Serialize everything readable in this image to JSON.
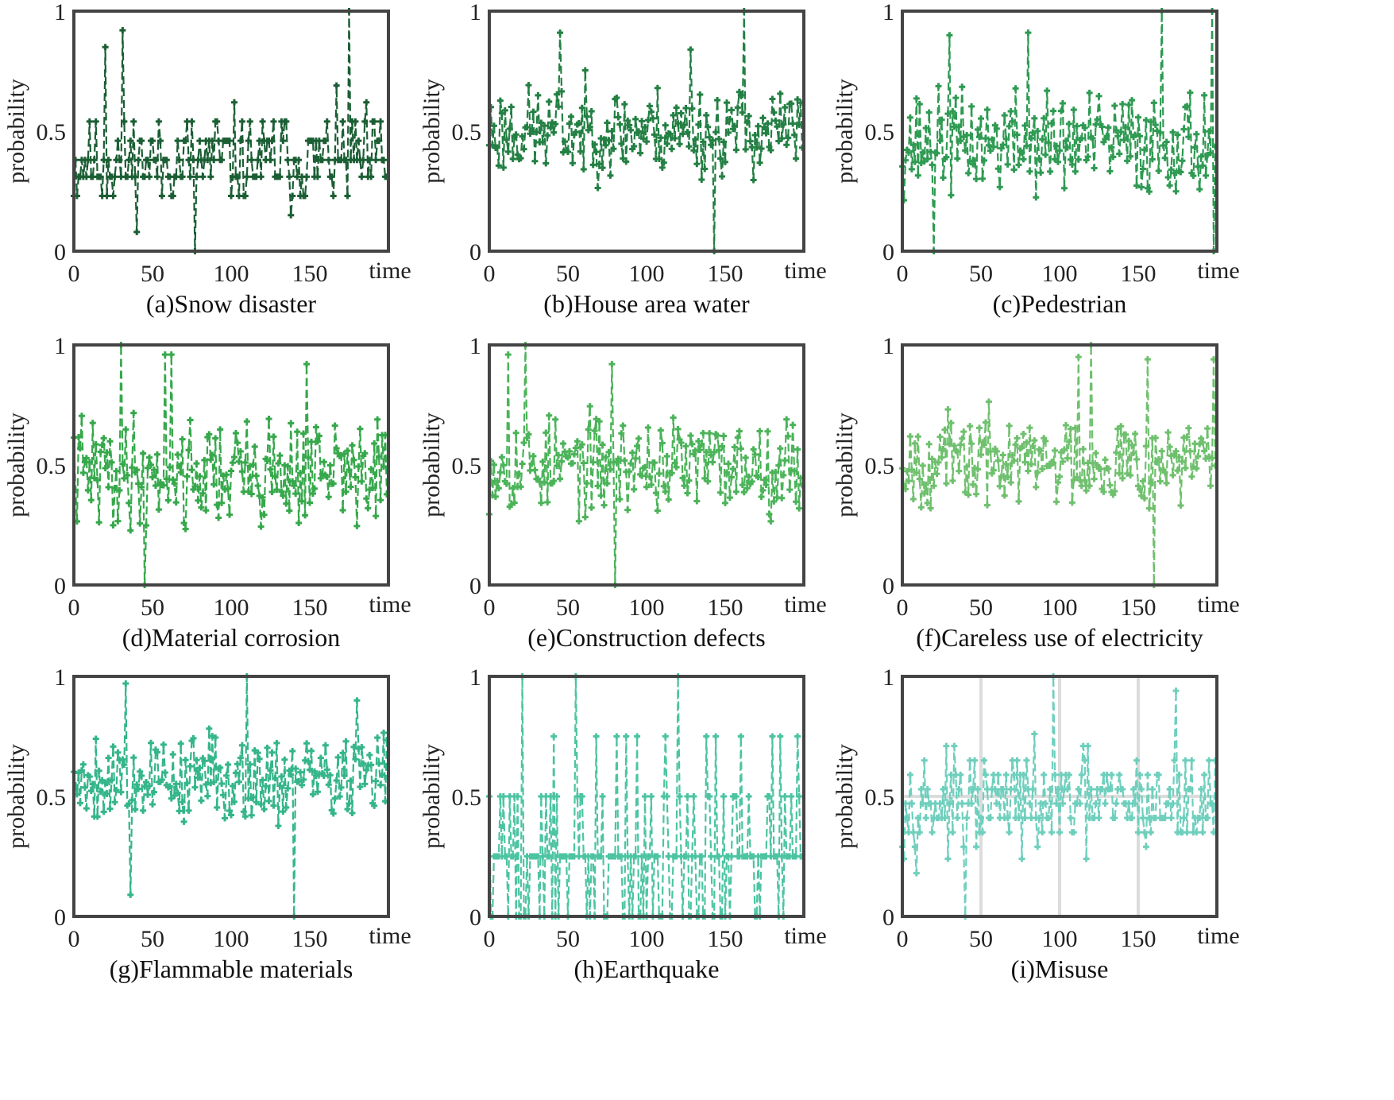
{
  "chart_data": [
    {
      "type": "line",
      "panel": "a",
      "title": "(a)Snow disaster",
      "xlabel": "time",
      "ylabel": "probability",
      "xlim": [
        0,
        200
      ],
      "ylim": [
        0,
        1
      ],
      "xticks": [
        0,
        50,
        100,
        150
      ],
      "yticks": [
        0,
        0.5,
        1
      ],
      "xtick_labels": [
        "0",
        "50",
        "100",
        "150"
      ],
      "ytick_labels": [
        "0",
        "0.5",
        "1"
      ],
      "color": "#1b5e34",
      "line_style": "dashed",
      "marker": "plus",
      "levels": [
        0.08,
        0.15,
        0.23,
        0.31,
        0.38,
        0.46,
        0.54,
        0.62,
        0.69,
        0.77
      ],
      "series": [
        {
          "name": "Snow disaster",
          "x_step": 1,
          "count": 200,
          "seed": 11,
          "mean": 0.38,
          "spread": 0.14,
          "peaks": [
            [
              20,
              0.85
            ],
            [
              31,
              0.92
            ],
            [
              77,
              0.0
            ],
            [
              175,
              1.0
            ]
          ]
        }
      ]
    },
    {
      "type": "line",
      "panel": "b",
      "title": "(b)House area water",
      "xlabel": "time",
      "ylabel": "probability",
      "xlim": [
        0,
        200
      ],
      "ylim": [
        0,
        1
      ],
      "xticks": [
        0,
        50,
        100,
        150
      ],
      "yticks": [
        0,
        0.5,
        1
      ],
      "xtick_labels": [
        "0",
        "50",
        "100",
        "150"
      ],
      "ytick_labels": [
        "0",
        "0.5",
        "1"
      ],
      "color": "#237f43",
      "line_style": "dashed",
      "marker": "plus",
      "levels": null,
      "series": [
        {
          "name": "House area water",
          "x_step": 1,
          "count": 200,
          "seed": 23,
          "mean": 0.5,
          "spread": 0.13,
          "peaks": [
            [
              45,
              0.91
            ],
            [
              143,
              0.0
            ],
            [
              162,
              1.0
            ],
            [
              128,
              0.84
            ]
          ]
        }
      ]
    },
    {
      "type": "line",
      "panel": "c",
      "title": "(c)Pedestrian",
      "xlabel": "time",
      "ylabel": "probability",
      "xlim": [
        0,
        200
      ],
      "ylim": [
        0,
        1
      ],
      "xticks": [
        0,
        50,
        100,
        150
      ],
      "yticks": [
        0,
        0.5,
        1
      ],
      "xtick_labels": [
        "0",
        "50",
        "100",
        "150"
      ],
      "ytick_labels": [
        "0",
        "0.5",
        "1"
      ],
      "color": "#2e9a52",
      "line_style": "dashed",
      "marker": "plus",
      "levels": null,
      "series": [
        {
          "name": "Pedestrian",
          "x_step": 1,
          "count": 200,
          "seed": 37,
          "mean": 0.45,
          "spread": 0.15,
          "peaks": [
            [
              20,
              0.0
            ],
            [
              30,
              0.9
            ],
            [
              80,
              0.91
            ],
            [
              165,
              1.0
            ],
            [
              197,
              1.0
            ],
            [
              198,
              0.0
            ]
          ]
        }
      ]
    },
    {
      "type": "line",
      "panel": "d",
      "title": "(d)Material corrosion",
      "xlabel": "time",
      "ylabel": "probability",
      "xlim": [
        0,
        200
      ],
      "ylim": [
        0,
        1
      ],
      "xticks": [
        0,
        50,
        100,
        150
      ],
      "yticks": [
        0,
        0.5,
        1
      ],
      "xtick_labels": [
        "0",
        "50",
        "100",
        "150"
      ],
      "ytick_labels": [
        "0",
        "0.5",
        "1"
      ],
      "color": "#36a84b",
      "line_style": "dashed",
      "marker": "plus",
      "levels": null,
      "series": [
        {
          "name": "Material corrosion",
          "x_step": 1,
          "count": 200,
          "seed": 41,
          "mean": 0.47,
          "spread": 0.16,
          "peaks": [
            [
              30,
              1.0
            ],
            [
              45,
              0.0
            ],
            [
              58,
              0.96
            ],
            [
              62,
              0.96
            ],
            [
              148,
              0.92
            ]
          ]
        }
      ]
    },
    {
      "type": "line",
      "panel": "e",
      "title": "(e)Construction defects",
      "xlabel": "time",
      "ylabel": "probability",
      "xlim": [
        0,
        200
      ],
      "ylim": [
        0,
        1
      ],
      "xticks": [
        0,
        50,
        100,
        150
      ],
      "yticks": [
        0,
        0.5,
        1
      ],
      "xtick_labels": [
        "0",
        "50",
        "100",
        "150"
      ],
      "ytick_labels": [
        "0",
        "0.5",
        "1"
      ],
      "color": "#4bb359",
      "line_style": "dashed",
      "marker": "plus",
      "levels": null,
      "series": [
        {
          "name": "Construction defects",
          "x_step": 1,
          "count": 200,
          "seed": 53,
          "mean": 0.5,
          "spread": 0.14,
          "peaks": [
            [
              12,
              0.96
            ],
            [
              23,
              1.0
            ],
            [
              78,
              0.92
            ],
            [
              80,
              0.0
            ]
          ]
        }
      ]
    },
    {
      "type": "line",
      "panel": "f",
      "title": "(f)Careless use of electricity",
      "xlabel": "time",
      "ylabel": "probability",
      "xlim": [
        0,
        200
      ],
      "ylim": [
        0,
        1
      ],
      "xticks": [
        0,
        50,
        100,
        150
      ],
      "yticks": [
        0,
        0.5,
        1
      ],
      "xtick_labels": [
        "0",
        "50",
        "100",
        "150"
      ],
      "ytick_labels": [
        "0",
        "0.5",
        "1"
      ],
      "color": "#6fc06e",
      "line_style": "dashed",
      "marker": "plus",
      "levels": null,
      "series": [
        {
          "name": "Careless use of electricity",
          "x_step": 1,
          "count": 200,
          "seed": 67,
          "mean": 0.52,
          "spread": 0.13,
          "peaks": [
            [
              112,
              0.95
            ],
            [
              120,
              1.0
            ],
            [
              156,
              0.94
            ],
            [
              160,
              0.0
            ],
            [
              198,
              0.94
            ]
          ]
        }
      ]
    },
    {
      "type": "line",
      "panel": "g",
      "title": "(g)Flammable materials",
      "xlabel": "time",
      "ylabel": "probability",
      "xlim": [
        0,
        200
      ],
      "ylim": [
        0,
        1
      ],
      "xticks": [
        0,
        50,
        100,
        150
      ],
      "yticks": [
        0,
        0.5,
        1
      ],
      "xtick_labels": [
        "0",
        "50",
        "100",
        "150"
      ],
      "ytick_labels": [
        "0",
        "0.5",
        "1"
      ],
      "color": "#34b58a",
      "line_style": "dashed",
      "marker": "plus",
      "levels": null,
      "series": [
        {
          "name": "Flammable materials",
          "x_step": 1,
          "count": 200,
          "seed": 79,
          "mean": 0.58,
          "spread": 0.13,
          "peaks": [
            [
              33,
              0.97
            ],
            [
              36,
              0.09
            ],
            [
              110,
              1.0
            ],
            [
              140,
              0.0
            ],
            [
              180,
              0.9
            ]
          ]
        }
      ]
    },
    {
      "type": "line",
      "panel": "h",
      "title": "(h)Earthquake",
      "xlabel": "time",
      "ylabel": "probability",
      "xlim": [
        0,
        200
      ],
      "ylim": [
        0,
        1
      ],
      "xticks": [
        0,
        50,
        100,
        150
      ],
      "yticks": [
        0,
        0.5,
        1
      ],
      "xtick_labels": [
        "0",
        "50",
        "100",
        "150"
      ],
      "ytick_labels": [
        "0",
        "0.5",
        "1"
      ],
      "color": "#4cc4a2",
      "line_style": "dashed",
      "marker": "plus",
      "levels": [
        0.0,
        0.25,
        0.5,
        0.75
      ],
      "series": [
        {
          "name": "Earthquake",
          "x_step": 1,
          "count": 200,
          "seed": 83,
          "mean": 0.25,
          "spread": 0.2,
          "peaks": [
            [
              21,
              1.0
            ],
            [
              55,
              1.0
            ],
            [
              120,
              1.0
            ],
            [
              180,
              0.75
            ]
          ]
        }
      ]
    },
    {
      "type": "line",
      "panel": "i",
      "title": "(i)Misuse",
      "xlabel": "time",
      "ylabel": "probability",
      "xlim": [
        0,
        200
      ],
      "ylim": [
        0,
        1
      ],
      "xticks": [
        0,
        50,
        100,
        150
      ],
      "yticks": [
        0,
        0.5,
        1
      ],
      "xtick_labels": [
        "0",
        "50",
        "100",
        "150"
      ],
      "ytick_labels": [
        "0",
        "0.5",
        "1"
      ],
      "grid": true,
      "color": "#6fcfbd",
      "line_style": "dashed",
      "marker": "plus",
      "levels": [
        0.12,
        0.18,
        0.24,
        0.29,
        0.35,
        0.41,
        0.47,
        0.53,
        0.59,
        0.65,
        0.71,
        0.76,
        0.82,
        0.88
      ],
      "series": [
        {
          "name": "Misuse",
          "x_step": 1,
          "count": 200,
          "seed": 97,
          "mean": 0.47,
          "spread": 0.14,
          "peaks": [
            [
              40,
              0.0
            ],
            [
              96,
              1.0
            ],
            [
              174,
              0.94
            ]
          ]
        }
      ]
    }
  ]
}
